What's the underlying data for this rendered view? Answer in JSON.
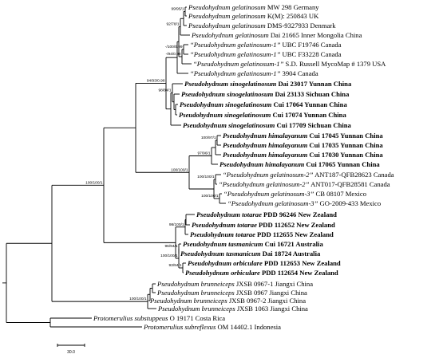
{
  "tree": {
    "taxa": [
      {
        "id": "a1",
        "species": "Pseudohydnum gelatinosum",
        "voucher": "MW 298 Germany",
        "bold": false
      },
      {
        "id": "a2",
        "species": "Pseudohydnum gelatinosum",
        "voucher": "K(M): 250843 UK",
        "bold": false
      },
      {
        "id": "a3",
        "species": "Pseudohydnum gelatinosum",
        "voucher": "DMS-9327933 Denmark",
        "bold": false
      },
      {
        "id": "a4",
        "species": "Pseudohydnum gelatinosum",
        "voucher": "Dai 21665 Inner Mongolia China",
        "bold": false
      },
      {
        "id": "a5",
        "species": "“Pseudohydnum gelatinosum-1”",
        "voucher": "UBC F19746 Canada",
        "bold": false
      },
      {
        "id": "a6",
        "species": "“Pseudohydnum gelatinosum-1”",
        "voucher": "UBC F33228 Canada",
        "bold": false
      },
      {
        "id": "a7",
        "species": "“Pseudohydnum gelatinosum-1”",
        "voucher": "S.D. Russell MycoMap # 1379 USA",
        "bold": false
      },
      {
        "id": "a8",
        "species": "“Pseudohydnum gelatinosum-1”",
        "voucher": "3904 Canada",
        "bold": false
      },
      {
        "id": "b1",
        "species": "Pseudohydnum sinogelatinosum",
        "voucher": "Dai 23017 Yunnan China",
        "bold": true
      },
      {
        "id": "b2",
        "species": "Pseudohydnum sinogelatinosum",
        "voucher": "Dai 23133 Sichuan China",
        "bold": true
      },
      {
        "id": "b3",
        "species": "Pseudohydnum sinogelatinosum",
        "voucher": "Cui 17064 Yunnan China",
        "bold": true
      },
      {
        "id": "b4",
        "species": "Pseudohydnum sinogelatinosum",
        "voucher": "Cui 17074 Yunnan China",
        "bold": true
      },
      {
        "id": "b5",
        "species": "Pseudohydnum sinogelatinosum",
        "voucher": "Cui 17709 Sichuan China",
        "bold": true
      },
      {
        "id": "c1",
        "species": "Pseudohydnum himalayanum",
        "voucher": "Cui 17045 Yunnan China",
        "bold": true
      },
      {
        "id": "c2",
        "species": "Pseudohydnum himalayanum",
        "voucher": "Cui 17035 Yunnan China",
        "bold": true
      },
      {
        "id": "c3",
        "species": "Pseudohydnum himalayanum",
        "voucher": "Cui 17030 Yunnan China",
        "bold": true
      },
      {
        "id": "c4",
        "species": "Pseudohydnum himalayanum",
        "voucher": "Cui 17065 Yunnan China",
        "bold": true
      },
      {
        "id": "d1",
        "species": "“Pseudohydnum gelatinosum-2”",
        "voucher": "ANT187-QFB28623 Canada",
        "bold": false
      },
      {
        "id": "d2",
        "species": "“Pseudohydnum gelatinosum-2”",
        "voucher": "ANT017-QFB28581 Canada",
        "bold": false
      },
      {
        "id": "e1",
        "species": "“Pseudohydnum gelatinosum-3”",
        "voucher": "CB 08107 Mexico",
        "bold": false
      },
      {
        "id": "e2",
        "species": "“Pseudohydnum gelatinosum-3”",
        "voucher": "GO-2009-433 Mexico",
        "bold": false
      },
      {
        "id": "f1",
        "species": "Pseudohydnum totarae",
        "voucher": "PDD 96246 New Zealand",
        "bold": true
      },
      {
        "id": "f2",
        "species": "Pseudohydnum totarae",
        "voucher": "PDD 112652 New Zealand",
        "bold": true
      },
      {
        "id": "f3",
        "species": "Pseudohydnum totarae",
        "voucher": "PDD 112655 New Zealand",
        "bold": true
      },
      {
        "id": "g1",
        "species": "Pseudohydnum tasmanicum",
        "voucher": "Cui 16721 Australia",
        "bold": true
      },
      {
        "id": "g2",
        "species": "Pseudohydnum tasmanicum",
        "voucher": "Dai 18724 Australia",
        "bold": true
      },
      {
        "id": "h1",
        "species": "Pseudohydnum orbiculare",
        "voucher": "PDD 112653 New Zealand",
        "bold": true
      },
      {
        "id": "h2",
        "species": "Pseudohydnum orbiculare",
        "voucher": "PDD 112654 New Zealand",
        "bold": true
      },
      {
        "id": "i1",
        "species": "Pseudohydnum brunneiceps",
        "voucher": "JXSB 0967-1 Jiangxi China",
        "bold": false
      },
      {
        "id": "i2",
        "species": "Pseudohydnum brunneiceps",
        "voucher": "JXSB 0967 Jiangxi China",
        "bold": false
      },
      {
        "id": "i3",
        "species": "Pseudohydnum brunneiceps",
        "voucher": "JXSB 0967-2 Jiangxi China",
        "bold": false
      },
      {
        "id": "i4",
        "species": "Pseudohydnum brunneiceps",
        "voucher": "JXSB 1063 Jiangxi China",
        "bold": false
      },
      {
        "id": "o1",
        "species": "Protomerulius substuppeus",
        "voucher": "O 19171 Costa Rica",
        "bold": false
      },
      {
        "id": "o2",
        "species": "Protomerulius subreflexus",
        "voucher": "OM 14402.1 Indonesia",
        "bold": false
      }
    ],
    "supports": [
      {
        "id": "s1",
        "label": "99/95/1"
      },
      {
        "id": "s2",
        "label": "92/78/1"
      },
      {
        "id": "s3",
        "label": "-/100/0.99"
      },
      {
        "id": "s4",
        "label": "-/94/0.98"
      },
      {
        "id": "s5",
        "label": "98/84/1"
      },
      {
        "id": "s6",
        "label": "94/93/0.98"
      },
      {
        "id": "s7",
        "label": "100/97/1"
      },
      {
        "id": "s8",
        "label": "97/96/1"
      },
      {
        "id": "s9",
        "label": "100/100/1"
      },
      {
        "id": "s10",
        "label": "100/100/1"
      },
      {
        "id": "s11",
        "label": "100/100/1"
      },
      {
        "id": "s12",
        "label": "98/100/1"
      },
      {
        "id": "s13",
        "label": "96/94/1"
      },
      {
        "id": "s14",
        "label": "100/100/1"
      },
      {
        "id": "s15",
        "label": "93/94/1"
      },
      {
        "id": "s16",
        "label": "100/100/1"
      },
      {
        "id": "s17",
        "label": "100/100/1"
      }
    ],
    "scale_bar_label": "30.0"
  }
}
